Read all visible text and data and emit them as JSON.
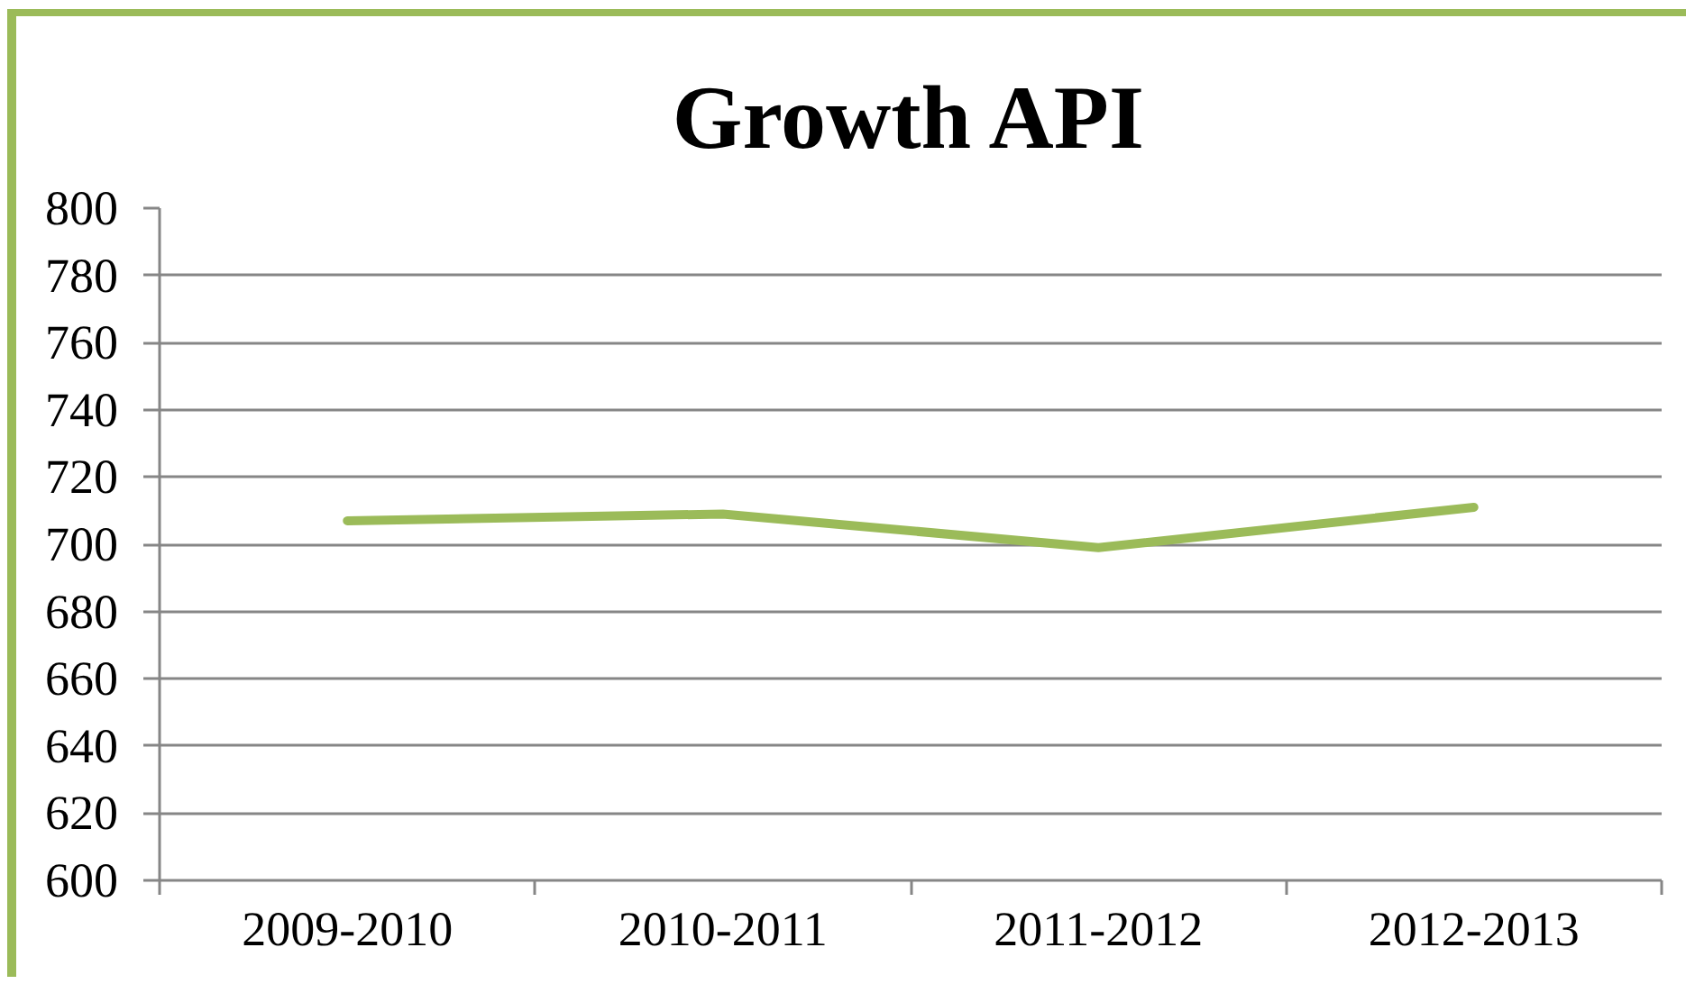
{
  "chart_data": {
    "type": "line",
    "title": "Growth API",
    "categories": [
      "2009-2010",
      "2010-2011",
      "2011-2012",
      "2012-2013"
    ],
    "series": [
      {
        "color": "#9bbb59",
        "values": [
          707,
          709,
          699,
          711
        ]
      }
    ],
    "ylim": [
      600,
      800
    ],
    "yticks": [
      600,
      620,
      640,
      660,
      680,
      700,
      720,
      740,
      760,
      780,
      800
    ],
    "grid": "y",
    "line_style": "solid"
  }
}
